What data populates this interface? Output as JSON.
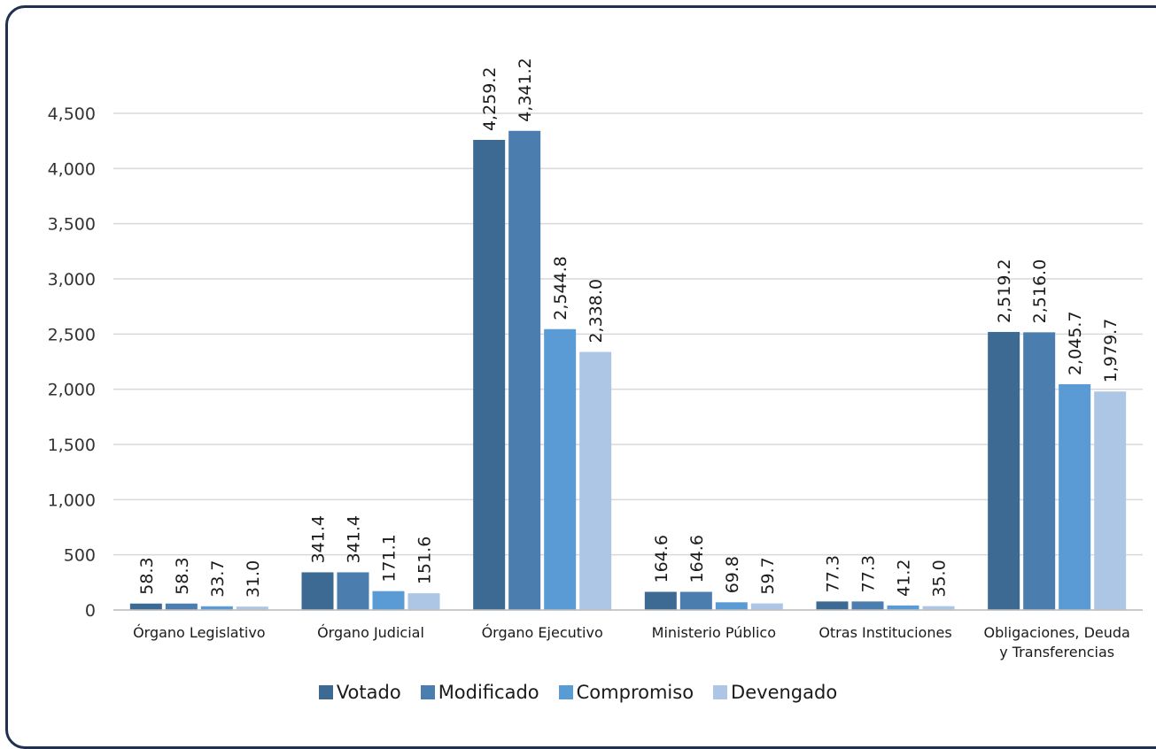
{
  "colors": {
    "votado": "#3d6a93",
    "modificado": "#4b7daf",
    "compromiso": "#5b9bd5",
    "devengado": "#aec6e6",
    "grid": "#d9d9d9",
    "frame": "#1f3050"
  },
  "chart_data": {
    "type": "bar",
    "categories": [
      [
        "Órgano Legislativo"
      ],
      [
        "Órgano Judicial"
      ],
      [
        "Órgano Ejecutivo"
      ],
      [
        "Ministerio Público"
      ],
      [
        "Otras Instituciones"
      ],
      [
        "Obligaciones, Deuda",
        "y Transferencias"
      ]
    ],
    "series": [
      {
        "name": "Votado",
        "values": [
          58.3,
          341.4,
          4259.2,
          164.6,
          77.3,
          2519.2
        ],
        "labels": [
          "58.3",
          "341.4",
          "4,259.2",
          "164.6",
          "77.3",
          "2,519.2"
        ]
      },
      {
        "name": "Modificado",
        "values": [
          58.3,
          341.4,
          4341.2,
          164.6,
          77.3,
          2516.0
        ],
        "labels": [
          "58.3",
          "341.4",
          "4,341.2",
          "164.6",
          "77.3",
          "2,516.0"
        ]
      },
      {
        "name": "Compromiso",
        "values": [
          33.7,
          171.1,
          2544.8,
          69.8,
          41.2,
          2045.7
        ],
        "labels": [
          "33.7",
          "171.1",
          "2,544.8",
          "69.8",
          "41.2",
          "2,045.7"
        ]
      },
      {
        "name": "Devengado",
        "values": [
          31.0,
          151.6,
          2338.0,
          59.7,
          35.0,
          1979.7
        ],
        "labels": [
          "31.0",
          "151.6",
          "2,338.0",
          "59.7",
          "35.0",
          "1,979.7"
        ]
      }
    ],
    "yticks": [
      "0",
      "500",
      "1,000",
      "1,500",
      "2,000",
      "2,500",
      "3,000",
      "3,500",
      "4,000",
      "4,500"
    ],
    "ylim": [
      0,
      4500
    ],
    "grid": true,
    "legend_position": "bottom"
  },
  "legend": {
    "items": [
      "Votado",
      "Modificado",
      "Compromiso",
      "Devengado"
    ]
  }
}
